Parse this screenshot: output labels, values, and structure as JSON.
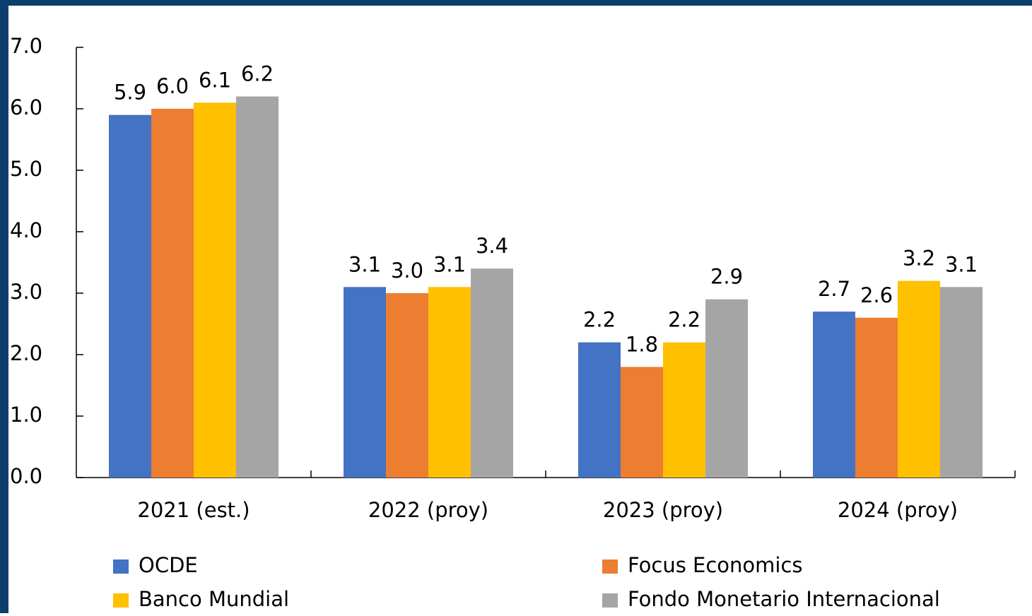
{
  "chart_data": {
    "type": "bar",
    "categories": [
      "2021 (est.)",
      "2022 (proy)",
      "2023 (proy)",
      "2024 (proy)"
    ],
    "series": [
      {
        "name": "OCDE",
        "color": "#4472c4",
        "values": [
          5.9,
          3.1,
          2.2,
          2.7
        ],
        "value_labels": [
          "5.9",
          "3.1",
          "2.2",
          "2.7"
        ]
      },
      {
        "name": "Focus Economics",
        "color": "#ed7d31",
        "values": [
          6.0,
          3.0,
          1.8,
          2.6
        ],
        "value_labels": [
          "6.0",
          "3.0",
          "1.8",
          "2.6"
        ]
      },
      {
        "name": "Banco Mundial",
        "color": "#ffc000",
        "values": [
          6.1,
          3.1,
          2.2,
          3.2
        ],
        "value_labels": [
          "6.1",
          "3.1",
          "2.2",
          "3.2"
        ]
      },
      {
        "name": "Fondo Monetario Internacional",
        "color": "#a5a5a5",
        "values": [
          6.2,
          3.4,
          2.9,
          3.1
        ],
        "value_labels": [
          "6.2",
          "3.4",
          "2.9",
          "3.1"
        ]
      }
    ],
    "ylim": [
      0,
      7
    ],
    "yticks": [
      {
        "value": 0,
        "label": "0.0"
      },
      {
        "value": 1,
        "label": "1.0"
      },
      {
        "value": 2,
        "label": "2.0"
      },
      {
        "value": 3,
        "label": "3.0"
      },
      {
        "value": 4,
        "label": "4.0"
      },
      {
        "value": 5,
        "label": "5.0"
      },
      {
        "value": 6,
        "label": "6.0"
      },
      {
        "value": 7,
        "label": "7.0"
      }
    ],
    "grid": false,
    "legend": "bottom"
  }
}
